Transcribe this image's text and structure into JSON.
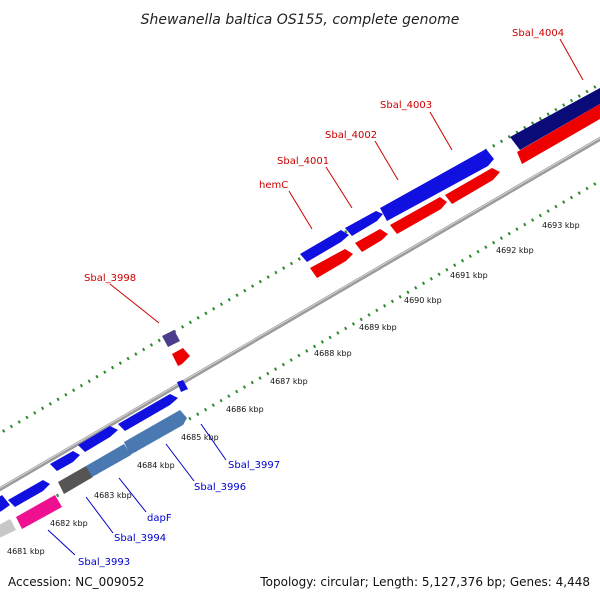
{
  "title": "Shewanella baltica OS155, complete genome",
  "footer": {
    "accession": "Accession: NC_009052",
    "summary": "Topology: circular; Length: 5,127,376 bp; Genes: 4,448"
  },
  "axis": {
    "unit": "kbp",
    "ticks": [
      "4681 kbp",
      "4682 kbp",
      "4683 kbp",
      "4684 kbp",
      "4685 kbp",
      "4686 kbp",
      "4687 kbp",
      "4688 kbp",
      "4689 kbp",
      "4690 kbp",
      "4691 kbp",
      "4692 kbp",
      "4693 kbp"
    ]
  },
  "colors": {
    "forward_label": "#cc0000",
    "reverse_label": "#0000cc",
    "tick_dots": "#2e8b2e",
    "backbone": "#8a8a8a"
  },
  "labels_forward": [
    "Sbal_3998",
    "hemC",
    "Sbal_4001",
    "Sbal_4002",
    "Sbal_4003",
    "Sbal_4004"
  ],
  "labels_reverse": [
    "Sbal_3993",
    "Sbal_3994",
    "dapF",
    "Sbal_3996",
    "Sbal_3997"
  ]
}
